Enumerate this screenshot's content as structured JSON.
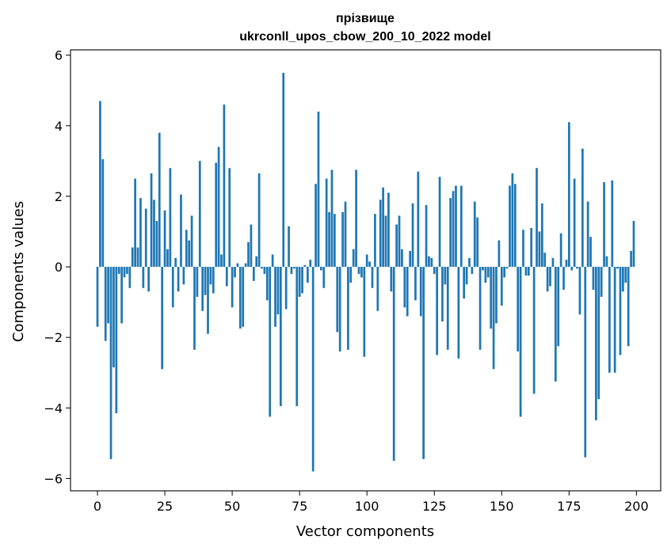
{
  "chart_data": {
    "type": "bar",
    "title": "прізвище",
    "subtitle": "ukrconll_upos_cbow_200_10_2022 model",
    "xlabel": "Vector components",
    "ylabel": "Components values",
    "xlim": [
      -10,
      209
    ],
    "ylim": [
      -6.35,
      6.15
    ],
    "xticks": [
      0,
      25,
      50,
      75,
      100,
      125,
      150,
      175,
      200
    ],
    "xtick_labels": [
      "0",
      "25",
      "50",
      "75",
      "100",
      "125",
      "150",
      "175",
      "200"
    ],
    "yticks": [
      6,
      4,
      2,
      0,
      -2,
      -4,
      -6
    ],
    "ytick_labels": [
      "6",
      "4",
      "2",
      "0",
      "−2",
      "−4",
      "−6"
    ],
    "bar_color": "#1f77b4",
    "grid": false,
    "x": [
      0,
      1,
      2,
      3,
      4,
      5,
      6,
      7,
      8,
      9,
      10,
      11,
      12,
      13,
      14,
      15,
      16,
      17,
      18,
      19,
      20,
      21,
      22,
      23,
      24,
      25,
      26,
      27,
      28,
      29,
      30,
      31,
      32,
      33,
      34,
      35,
      36,
      37,
      38,
      39,
      40,
      41,
      42,
      43,
      44,
      45,
      46,
      47,
      48,
      49,
      50,
      51,
      52,
      53,
      54,
      55,
      56,
      57,
      58,
      59,
      60,
      61,
      62,
      63,
      64,
      65,
      66,
      67,
      68,
      69,
      70,
      71,
      72,
      73,
      74,
      75,
      76,
      77,
      78,
      79,
      80,
      81,
      82,
      83,
      84,
      85,
      86,
      87,
      88,
      89,
      90,
      91,
      92,
      93,
      94,
      95,
      96,
      97,
      98,
      99,
      100,
      101,
      102,
      103,
      104,
      105,
      106,
      107,
      108,
      109,
      110,
      111,
      112,
      113,
      114,
      115,
      116,
      117,
      118,
      119,
      120,
      121,
      122,
      123,
      124,
      125,
      126,
      127,
      128,
      129,
      130,
      131,
      132,
      133,
      134,
      135,
      136,
      137,
      138,
      139,
      140,
      141,
      142,
      143,
      144,
      145,
      146,
      147,
      148,
      149,
      150,
      151,
      152,
      153,
      154,
      155,
      156,
      157,
      158,
      159,
      160,
      161,
      162,
      163,
      164,
      165,
      166,
      167,
      168,
      169,
      170,
      171,
      172,
      173,
      174,
      175,
      176,
      177,
      178,
      179,
      180,
      181,
      182,
      183,
      184,
      185,
      186,
      187,
      188,
      189,
      190,
      191,
      192,
      193,
      194,
      195,
      196,
      197,
      198,
      199
    ],
    "values": [
      -1.7,
      4.7,
      3.05,
      -2.1,
      -1.6,
      -5.45,
      -2.85,
      -4.15,
      -0.2,
      -1.6,
      -0.3,
      -0.2,
      -0.6,
      0.55,
      2.5,
      0.55,
      1.95,
      -0.6,
      1.65,
      -0.7,
      2.65,
      1.9,
      1.3,
      3.8,
      -2.9,
      1.6,
      0.5,
      2.8,
      -1.15,
      0.25,
      -0.7,
      2.05,
      -0.5,
      1.05,
      0.75,
      1.45,
      -2.35,
      -0.85,
      3.0,
      -1.25,
      -0.8,
      -1.9,
      -0.5,
      -0.75,
      2.95,
      3.4,
      0.35,
      4.6,
      -0.55,
      2.8,
      -1.15,
      -0.3,
      0.1,
      -1.75,
      -1.7,
      0.1,
      0.7,
      1.2,
      -0.4,
      0.3,
      2.65,
      -0.05,
      -0.2,
      -0.95,
      -4.25,
      0.35,
      -1.7,
      -1.35,
      -3.95,
      5.5,
      -1.2,
      1.15,
      -0.2,
      -0.05,
      -3.95,
      -0.85,
      -0.75,
      0.05,
      -0.45,
      0.2,
      -5.8,
      2.35,
      4.4,
      -0.1,
      -0.6,
      2.5,
      1.55,
      2.75,
      1.5,
      -1.85,
      -2.4,
      1.55,
      1.85,
      -2.35,
      -0.45,
      0.5,
      2.75,
      -0.2,
      -0.3,
      -2.55,
      0.35,
      0.15,
      -0.6,
      1.5,
      -1.25,
      1.9,
      2.25,
      1.45,
      2.1,
      -0.7,
      -5.5,
      1.2,
      1.45,
      0.5,
      -1.15,
      -1.4,
      0.45,
      1.8,
      -0.95,
      2.7,
      -1.4,
      -5.45,
      1.75,
      0.3,
      0.25,
      -0.2,
      -2.5,
      2.55,
      -1.55,
      -0.5,
      -2.35,
      1.95,
      2.15,
      2.3,
      -2.6,
      2.3,
      -0.9,
      -0.5,
      0.25,
      -0.2,
      1.85,
      1.4,
      -2.35,
      -0.1,
      -0.45,
      -0.3,
      -1.75,
      -2.9,
      -1.6,
      0.75,
      -1.1,
      -0.3,
      -0.05,
      2.3,
      2.65,
      2.35,
      -2.4,
      -4.25,
      1.05,
      -0.25,
      -0.25,
      1.1,
      -3.6,
      2.8,
      1.0,
      1.8,
      0.4,
      -0.7,
      -0.55,
      0.25,
      -3.25,
      -2.25,
      0.95,
      -0.65,
      0.2,
      4.1,
      -0.1,
      2.5,
      -0.05,
      -1.35,
      3.35,
      -5.4,
      1.85,
      0.85,
      -0.65,
      -4.35,
      -3.75,
      -0.85,
      2.4,
      0.3,
      -3.0,
      2.45,
      -3.0,
      -0.05,
      -2.5,
      -0.7,
      -0.45,
      -2.25,
      0.45,
      1.3
    ]
  }
}
